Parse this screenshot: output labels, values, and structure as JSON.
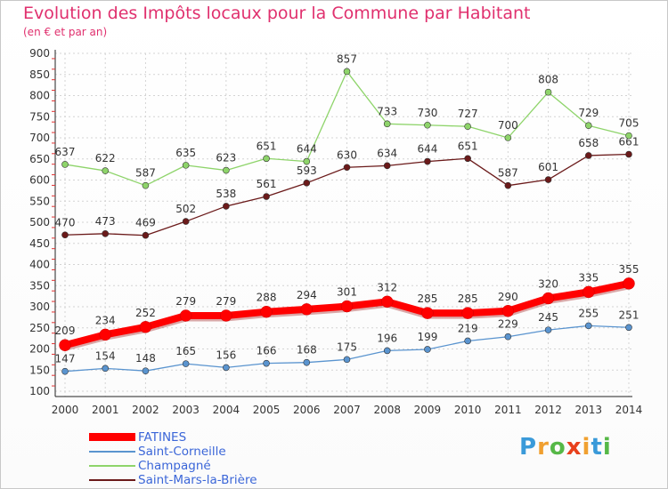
{
  "chart_data": {
    "type": "line",
    "title": "Evolution des Impôts locaux pour la Commune par Habitant",
    "subtitle": "(en € et par an)",
    "x": [
      "2000",
      "2001",
      "2002",
      "2003",
      "2004",
      "2005",
      "2006",
      "2007",
      "2008",
      "2009",
      "2010",
      "2011",
      "2012",
      "2013",
      "2014"
    ],
    "ylim": [
      100,
      900
    ],
    "yticks": [
      100,
      150,
      200,
      250,
      300,
      350,
      400,
      450,
      500,
      550,
      600,
      650,
      700,
      750,
      800,
      850,
      900
    ],
    "grid": true,
    "legend_position": "bottom-left",
    "series": [
      {
        "name": "Saint-Mars-la-Brière",
        "color": "#6b1a1a",
        "values": [
          470,
          473,
          469,
          502,
          538,
          561,
          593,
          630,
          634,
          644,
          651,
          587,
          601,
          658,
          661
        ]
      },
      {
        "name": "Champagné",
        "color": "#8ed46a",
        "values": [
          637,
          622,
          587,
          635,
          623,
          651,
          644,
          857,
          733,
          730,
          727,
          700,
          808,
          729,
          705
        ]
      },
      {
        "name": "Saint-Corneille",
        "color": "#5a94cf",
        "values": [
          147,
          154,
          148,
          165,
          156,
          166,
          168,
          175,
          196,
          199,
          219,
          229,
          245,
          255,
          251
        ]
      },
      {
        "name": "FATINES",
        "color": "#ff0000",
        "values": [
          209,
          234,
          252,
          279,
          279,
          288,
          294,
          301,
          312,
          285,
          285,
          290,
          320,
          335,
          355
        ]
      }
    ]
  },
  "legend": {
    "items": [
      {
        "label": "FATINES",
        "color": "#ff0000"
      },
      {
        "label": "Saint-Corneille",
        "color": "#5a94cf"
      },
      {
        "label": "Champagné",
        "color": "#8ed46a"
      },
      {
        "label": "Saint-Mars-la-Brière",
        "color": "#6b1a1a"
      }
    ]
  },
  "brand": {
    "letters": [
      "P",
      "r",
      "o",
      "x",
      "i",
      "t",
      "i"
    ],
    "colors": [
      "#3a9ad9",
      "#f0a030",
      "#56b847",
      "#e8401c",
      "#f0a030",
      "#3a9ad9",
      "#56b847"
    ]
  }
}
